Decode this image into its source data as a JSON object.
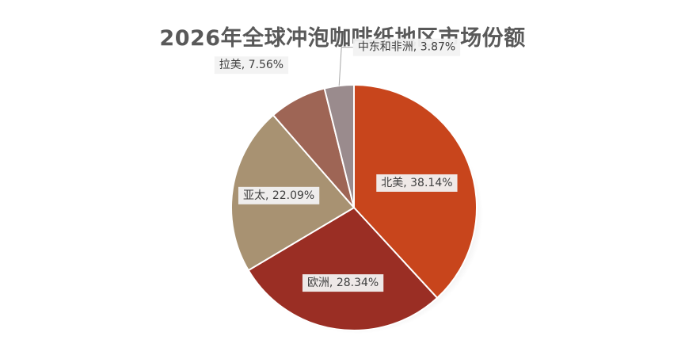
{
  "chart_data": {
    "type": "pie",
    "title": "2026年全球冲泡咖啡纸地区市场份额",
    "slices": [
      {
        "name": "北美",
        "value": 38.14,
        "label": "北美, 38.14%",
        "color": "#C8451C"
      },
      {
        "name": "欧洲",
        "value": 28.34,
        "label": "欧洲, 28.34%",
        "color": "#9A2E24"
      },
      {
        "name": "亚太",
        "value": 22.09,
        "label": "亚太, 22.09%",
        "color": "#A89272"
      },
      {
        "name": "拉美",
        "value": 7.56,
        "label": "拉美, 7.56%",
        "color": "#9E6555"
      },
      {
        "name": "中东和非洲",
        "value": 3.87,
        "label": "中东和非洲, 3.87%",
        "color": "#9A8B8D"
      }
    ]
  }
}
